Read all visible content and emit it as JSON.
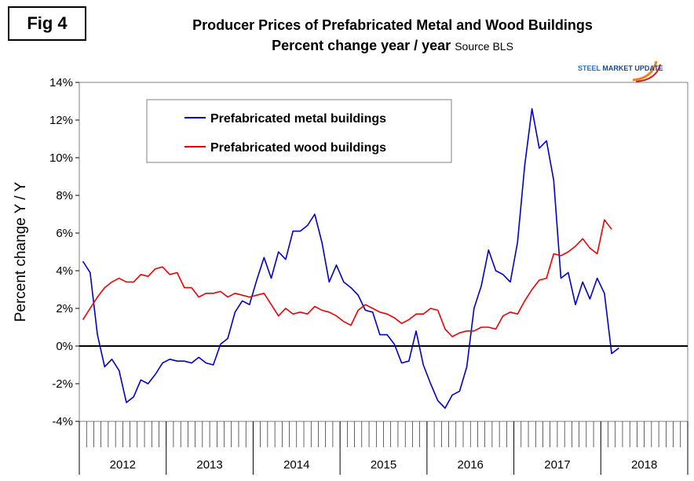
{
  "figure_label": "Fig 4",
  "logo": {
    "brand": "STEEL",
    "rest": "MARKET UPDATE"
  },
  "colors": {
    "metal": "#0000cc",
    "wood": "#ee0000",
    "axis": "#000000",
    "grid": "#808080"
  },
  "chart_data": {
    "type": "line",
    "title": "Producer Prices of Prefabricated Metal and Wood Buildings",
    "subtitle": "Percent change year / year",
    "source": "Source BLS",
    "xlabel": "",
    "ylabel": "Percent change Y / Y",
    "ylim": [
      -4,
      14
    ],
    "yticks": [
      -4,
      -2,
      0,
      2,
      4,
      6,
      8,
      10,
      12,
      14
    ],
    "ytick_labels": [
      "-4%",
      "-2%",
      "0%",
      "2%",
      "4%",
      "6%",
      "8%",
      "10%",
      "12%",
      "14%"
    ],
    "years": [
      "2012",
      "2013",
      "2014",
      "2015",
      "2016",
      "2017",
      "2018"
    ],
    "months_per_year": 12,
    "grid": false,
    "legend_position": "top-left",
    "series": [
      {
        "name": "Prefabricated metal buildings",
        "values": [
          4.5,
          3.9,
          0.6,
          -1.1,
          -0.7,
          -1.3,
          -3.0,
          -2.7,
          -1.8,
          -2.0,
          -1.5,
          -0.9,
          -0.7,
          -0.8,
          -0.8,
          -0.9,
          -0.6,
          -0.9,
          -1.0,
          0.1,
          0.4,
          1.8,
          2.4,
          2.2,
          3.5,
          4.7,
          3.6,
          5.0,
          4.6,
          6.1,
          6.1,
          6.4,
          7.0,
          5.5,
          3.4,
          4.3,
          3.4,
          3.1,
          2.7,
          1.9,
          1.8,
          0.6,
          0.6,
          0.1,
          -0.9,
          -0.8,
          0.8,
          -1.0,
          -2.0,
          -2.9,
          -3.3,
          -2.6,
          -2.4,
          -1.1,
          2.0,
          3.2,
          5.1,
          4.0,
          3.8,
          3.4,
          5.5,
          9.6,
          12.6,
          10.5,
          10.9,
          8.8,
          3.6,
          3.9,
          2.2,
          3.4,
          2.5,
          3.6,
          2.8,
          -0.4,
          -0.1
        ],
        "color": "#0000cc"
      },
      {
        "name": "Prefabricated wood buildings",
        "values": [
          1.4,
          2.0,
          2.6,
          3.1,
          3.4,
          3.6,
          3.4,
          3.4,
          3.8,
          3.7,
          4.1,
          4.2,
          3.8,
          3.9,
          3.1,
          3.1,
          2.6,
          2.8,
          2.8,
          2.9,
          2.6,
          2.8,
          2.7,
          2.6,
          2.7,
          2.8,
          2.2,
          1.6,
          2.0,
          1.7,
          1.8,
          1.7,
          2.1,
          1.9,
          1.8,
          1.6,
          1.3,
          1.1,
          1.9,
          2.2,
          2.0,
          1.8,
          1.7,
          1.5,
          1.2,
          1.4,
          1.7,
          1.7,
          2.0,
          1.9,
          0.9,
          0.5,
          0.7,
          0.8,
          0.8,
          1.0,
          1.0,
          0.9,
          1.6,
          1.8,
          1.7,
          2.4,
          3.0,
          3.5,
          3.6,
          4.9,
          4.8,
          5.0,
          5.3,
          5.7,
          5.2,
          4.9,
          6.7,
          6.2
        ],
        "color": "#ee0000"
      }
    ]
  }
}
